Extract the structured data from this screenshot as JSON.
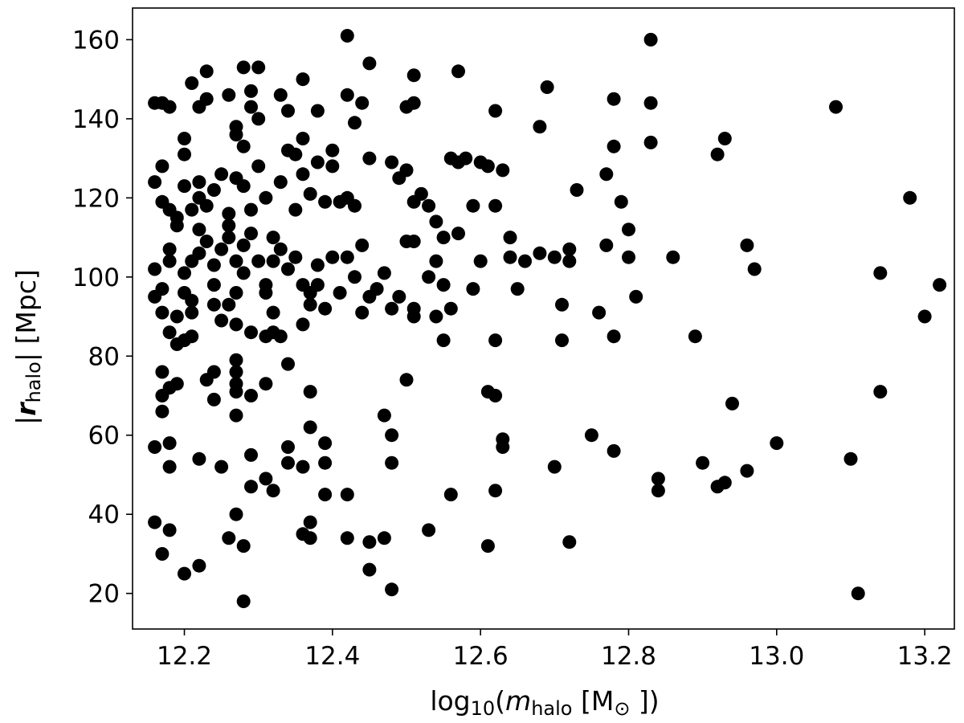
{
  "chart_data": {
    "type": "scatter",
    "title": "",
    "xlabel": {
      "prefix": "log",
      "prefix_sub": "10",
      "open": "(",
      "var": "m",
      "var_sub": "halo",
      "unit_open": " [M",
      "unit_symbol": "⊙",
      "close": " ])"
    },
    "ylabel": {
      "bar_left": "|",
      "var": "r",
      "var_sub": "halo",
      "bar_right": "|",
      "unit": " [Mpc]"
    },
    "xlim": [
      12.13,
      13.24
    ],
    "ylim": [
      11,
      168
    ],
    "xticks": [
      12.2,
      12.4,
      12.6,
      12.8,
      13.0,
      13.2
    ],
    "xtick_labels": [
      "12.2",
      "12.4",
      "12.6",
      "12.8",
      "13.0",
      "13.2"
    ],
    "yticks": [
      20,
      40,
      60,
      80,
      100,
      120,
      140,
      160
    ],
    "ytick_labels": [
      "20",
      "40",
      "60",
      "80",
      "100",
      "120",
      "140",
      "160"
    ],
    "grid": false,
    "legend": "none",
    "marker_color": "#000000",
    "points": [
      [
        12.16,
        38
      ],
      [
        12.17,
        30
      ],
      [
        12.18,
        36
      ],
      [
        12.2,
        25
      ],
      [
        12.22,
        27
      ],
      [
        12.28,
        18
      ],
      [
        12.16,
        57
      ],
      [
        12.18,
        58
      ],
      [
        12.18,
        52
      ],
      [
        12.22,
        54
      ],
      [
        12.25,
        52
      ],
      [
        12.27,
        65
      ],
      [
        12.29,
        55
      ],
      [
        12.29,
        47
      ],
      [
        12.27,
        40
      ],
      [
        12.26,
        34
      ],
      [
        12.28,
        32
      ],
      [
        12.31,
        49
      ],
      [
        12.32,
        46
      ],
      [
        12.34,
        53
      ],
      [
        12.34,
        57
      ],
      [
        12.36,
        52
      ],
      [
        12.37,
        62
      ],
      [
        12.37,
        38
      ],
      [
        12.36,
        35
      ],
      [
        12.37,
        34
      ],
      [
        12.39,
        58
      ],
      [
        12.39,
        53
      ],
      [
        12.39,
        45
      ],
      [
        12.42,
        45
      ],
      [
        12.42,
        34
      ],
      [
        12.45,
        33
      ],
      [
        12.45,
        26
      ],
      [
        12.47,
        65
      ],
      [
        12.48,
        60
      ],
      [
        12.48,
        53
      ],
      [
        12.47,
        34
      ],
      [
        12.48,
        21
      ],
      [
        12.53,
        36
      ],
      [
        12.56,
        45
      ],
      [
        12.61,
        32
      ],
      [
        12.62,
        46
      ],
      [
        12.63,
        57
      ],
      [
        12.63,
        59
      ],
      [
        12.7,
        52
      ],
      [
        12.72,
        33
      ],
      [
        12.75,
        60
      ],
      [
        12.78,
        56
      ],
      [
        12.84,
        49
      ],
      [
        12.84,
        46
      ],
      [
        12.9,
        53
      ],
      [
        12.92,
        47
      ],
      [
        12.93,
        48
      ],
      [
        12.96,
        51
      ],
      [
        13.0,
        58
      ],
      [
        13.1,
        54
      ],
      [
        13.11,
        20
      ],
      [
        12.94,
        68
      ],
      [
        13.14,
        71
      ],
      [
        12.17,
        76
      ],
      [
        12.17,
        70
      ],
      [
        12.17,
        66
      ],
      [
        12.18,
        72
      ],
      [
        12.19,
        73
      ],
      [
        12.23,
        74
      ],
      [
        12.24,
        76
      ],
      [
        12.24,
        69
      ],
      [
        12.27,
        79
      ],
      [
        12.27,
        76
      ],
      [
        12.27,
        73
      ],
      [
        12.27,
        71
      ],
      [
        12.29,
        70
      ],
      [
        12.31,
        73
      ],
      [
        12.34,
        78
      ],
      [
        12.37,
        71
      ],
      [
        12.5,
        74
      ],
      [
        12.61,
        71
      ],
      [
        12.62,
        70
      ],
      [
        12.17,
        91
      ],
      [
        12.18,
        86
      ],
      [
        12.19,
        83
      ],
      [
        12.19,
        90
      ],
      [
        12.2,
        84
      ],
      [
        12.21,
        85
      ],
      [
        12.21,
        91
      ],
      [
        12.24,
        93
      ],
      [
        12.25,
        89
      ],
      [
        12.27,
        88
      ],
      [
        12.29,
        86
      ],
      [
        12.31,
        85
      ],
      [
        12.32,
        86
      ],
      [
        12.32,
        91
      ],
      [
        12.33,
        85
      ],
      [
        12.36,
        88
      ],
      [
        12.37,
        93
      ],
      [
        12.39,
        92
      ],
      [
        12.44,
        91
      ],
      [
        12.48,
        92
      ],
      [
        12.51,
        90
      ],
      [
        12.51,
        92
      ],
      [
        12.54,
        90
      ],
      [
        12.55,
        84
      ],
      [
        12.56,
        92
      ],
      [
        12.62,
        84
      ],
      [
        12.71,
        84
      ],
      [
        12.71,
        93
      ],
      [
        12.76,
        91
      ],
      [
        12.78,
        85
      ],
      [
        12.81,
        95
      ],
      [
        12.89,
        85
      ],
      [
        13.2,
        90
      ],
      [
        12.16,
        95
      ],
      [
        12.16,
        102
      ],
      [
        12.17,
        97
      ],
      [
        12.18,
        107
      ],
      [
        12.18,
        104
      ],
      [
        12.19,
        113
      ],
      [
        12.2,
        96
      ],
      [
        12.2,
        101
      ],
      [
        12.21,
        94
      ],
      [
        12.21,
        104
      ],
      [
        12.22,
        106
      ],
      [
        12.22,
        112
      ],
      [
        12.23,
        109
      ],
      [
        12.24,
        98
      ],
      [
        12.24,
        103
      ],
      [
        12.25,
        107
      ],
      [
        12.26,
        93
      ],
      [
        12.26,
        110
      ],
      [
        12.27,
        96
      ],
      [
        12.27,
        104
      ],
      [
        12.28,
        101
      ],
      [
        12.28,
        108
      ],
      [
        12.29,
        111
      ],
      [
        12.3,
        104
      ],
      [
        12.31,
        98
      ],
      [
        12.31,
        96
      ],
      [
        12.32,
        104
      ],
      [
        12.33,
        107
      ],
      [
        12.34,
        102
      ],
      [
        12.35,
        105
      ],
      [
        12.36,
        98
      ],
      [
        12.37,
        96
      ],
      [
        12.38,
        103
      ],
      [
        12.38,
        98
      ],
      [
        12.4,
        105
      ],
      [
        12.41,
        96
      ],
      [
        12.42,
        105
      ],
      [
        12.43,
        100
      ],
      [
        12.44,
        108
      ],
      [
        12.45,
        95
      ],
      [
        12.46,
        97
      ],
      [
        12.47,
        101
      ],
      [
        12.49,
        95
      ],
      [
        12.5,
        109
      ],
      [
        12.51,
        109
      ],
      [
        12.53,
        100
      ],
      [
        12.54,
        104
      ],
      [
        12.55,
        98
      ],
      [
        12.57,
        111
      ],
      [
        12.59,
        97
      ],
      [
        12.6,
        104
      ],
      [
        12.64,
        105
      ],
      [
        12.65,
        97
      ],
      [
        12.66,
        104
      ],
      [
        12.68,
        106
      ],
      [
        12.7,
        105
      ],
      [
        12.72,
        107
      ],
      [
        12.72,
        104
      ],
      [
        12.77,
        108
      ],
      [
        12.8,
        105
      ],
      [
        12.86,
        105
      ],
      [
        12.96,
        108
      ],
      [
        12.97,
        102
      ],
      [
        13.14,
        101
      ],
      [
        13.22,
        98
      ],
      [
        12.16,
        124
      ],
      [
        12.17,
        119
      ],
      [
        12.17,
        128
      ],
      [
        12.18,
        117
      ],
      [
        12.19,
        115
      ],
      [
        12.2,
        123
      ],
      [
        12.2,
        131
      ],
      [
        12.21,
        117
      ],
      [
        12.22,
        120
      ],
      [
        12.22,
        124
      ],
      [
        12.23,
        118
      ],
      [
        12.24,
        122
      ],
      [
        12.25,
        126
      ],
      [
        12.26,
        116
      ],
      [
        12.26,
        113
      ],
      [
        12.27,
        125
      ],
      [
        12.28,
        123
      ],
      [
        12.29,
        117
      ],
      [
        12.3,
        128
      ],
      [
        12.31,
        120
      ],
      [
        12.32,
        110
      ],
      [
        12.33,
        124
      ],
      [
        12.34,
        132
      ],
      [
        12.35,
        117
      ],
      [
        12.36,
        126
      ],
      [
        12.36,
        135
      ],
      [
        12.37,
        121
      ],
      [
        12.38,
        129
      ],
      [
        12.39,
        119
      ],
      [
        12.4,
        128
      ],
      [
        12.4,
        132
      ],
      [
        12.41,
        119
      ],
      [
        12.42,
        120
      ],
      [
        12.43,
        118
      ],
      [
        12.45,
        130
      ],
      [
        12.48,
        129
      ],
      [
        12.49,
        125
      ],
      [
        12.5,
        127
      ],
      [
        12.51,
        119
      ],
      [
        12.52,
        121
      ],
      [
        12.53,
        118
      ],
      [
        12.54,
        114
      ],
      [
        12.55,
        110
      ],
      [
        12.56,
        130
      ],
      [
        12.57,
        129
      ],
      [
        12.58,
        130
      ],
      [
        12.59,
        118
      ],
      [
        12.6,
        129
      ],
      [
        12.61,
        128
      ],
      [
        12.62,
        118
      ],
      [
        12.63,
        127
      ],
      [
        12.64,
        110
      ],
      [
        12.73,
        122
      ],
      [
        12.77,
        126
      ],
      [
        12.79,
        119
      ],
      [
        12.8,
        112
      ],
      [
        12.92,
        131
      ],
      [
        13.18,
        120
      ],
      [
        12.16,
        144
      ],
      [
        12.17,
        144
      ],
      [
        12.18,
        143
      ],
      [
        12.2,
        135
      ],
      [
        12.21,
        149
      ],
      [
        12.22,
        143
      ],
      [
        12.23,
        145
      ],
      [
        12.23,
        152
      ],
      [
        12.26,
        146
      ],
      [
        12.27,
        138
      ],
      [
        12.27,
        136
      ],
      [
        12.28,
        133
      ],
      [
        12.28,
        153
      ],
      [
        12.29,
        147
      ],
      [
        12.29,
        143
      ],
      [
        12.3,
        140
      ],
      [
        12.3,
        153
      ],
      [
        12.33,
        146
      ],
      [
        12.34,
        142
      ],
      [
        12.35,
        131
      ],
      [
        12.36,
        150
      ],
      [
        12.38,
        142
      ],
      [
        12.42,
        146
      ],
      [
        12.43,
        139
      ],
      [
        12.44,
        144
      ],
      [
        12.45,
        154
      ],
      [
        12.42,
        161
      ],
      [
        12.5,
        143
      ],
      [
        12.51,
        144
      ],
      [
        12.51,
        151
      ],
      [
        12.57,
        152
      ],
      [
        12.62,
        142
      ],
      [
        12.69,
        148
      ],
      [
        12.68,
        138
      ],
      [
        12.78,
        145
      ],
      [
        12.78,
        133
      ],
      [
        12.83,
        144
      ],
      [
        12.83,
        134
      ],
      [
        12.83,
        160
      ],
      [
        12.93,
        135
      ],
      [
        13.08,
        143
      ]
    ]
  }
}
